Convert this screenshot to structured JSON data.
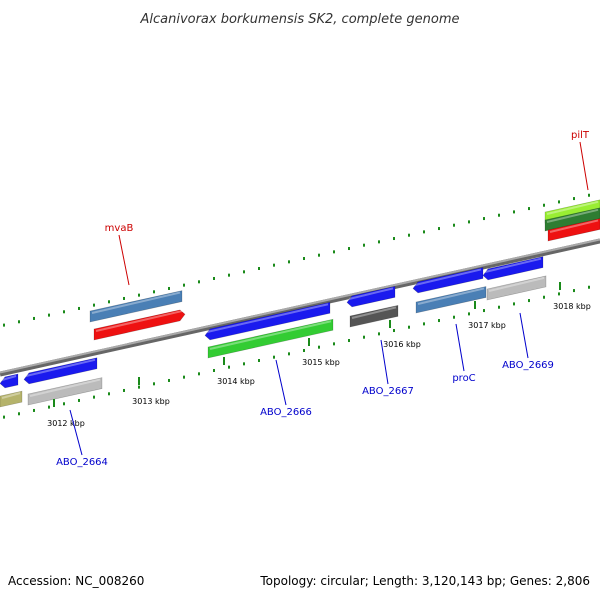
{
  "title": "Alcanivorax borkumensis SK2, complete genome",
  "footer": {
    "accession": "Accession: NC_008260",
    "summary": "Topology: circular; Length: 3,120,143 bp; Genes: 2,806"
  },
  "ticks": [
    {
      "label": "3012 kbp"
    },
    {
      "label": "3013 kbp"
    },
    {
      "label": "3014 kbp"
    },
    {
      "label": "3015 kbp"
    },
    {
      "label": "3016 kbp"
    },
    {
      "label": "3017 kbp"
    },
    {
      "label": "3018 kbp"
    }
  ],
  "gene_labels": [
    {
      "text": "mvaB",
      "color": "#cc0000"
    },
    {
      "text": "pilT",
      "color": "#cc0000"
    },
    {
      "text": "ABO_2664",
      "color": "#0000cc"
    },
    {
      "text": "ABO_2666",
      "color": "#0000cc"
    },
    {
      "text": "ABO_2667",
      "color": "#0000cc"
    },
    {
      "text": "proC",
      "color": "#0000cc"
    },
    {
      "text": "ABO_2669",
      "color": "#0000cc"
    }
  ],
  "feature_colors": {
    "cds": "#1a1aee",
    "gene_red": "#ee1111",
    "gene_steel": "#4a7fb5",
    "gene_green": "#33cc33",
    "gene_grey": "#bbbbbb",
    "gene_dark": "#555555",
    "gene_olive": "#b5b36b",
    "gene_lime": "#99ee33",
    "gene_darkgreen": "#2e7d32",
    "backbone": "#888888",
    "ticks": "#1a8a1a"
  }
}
